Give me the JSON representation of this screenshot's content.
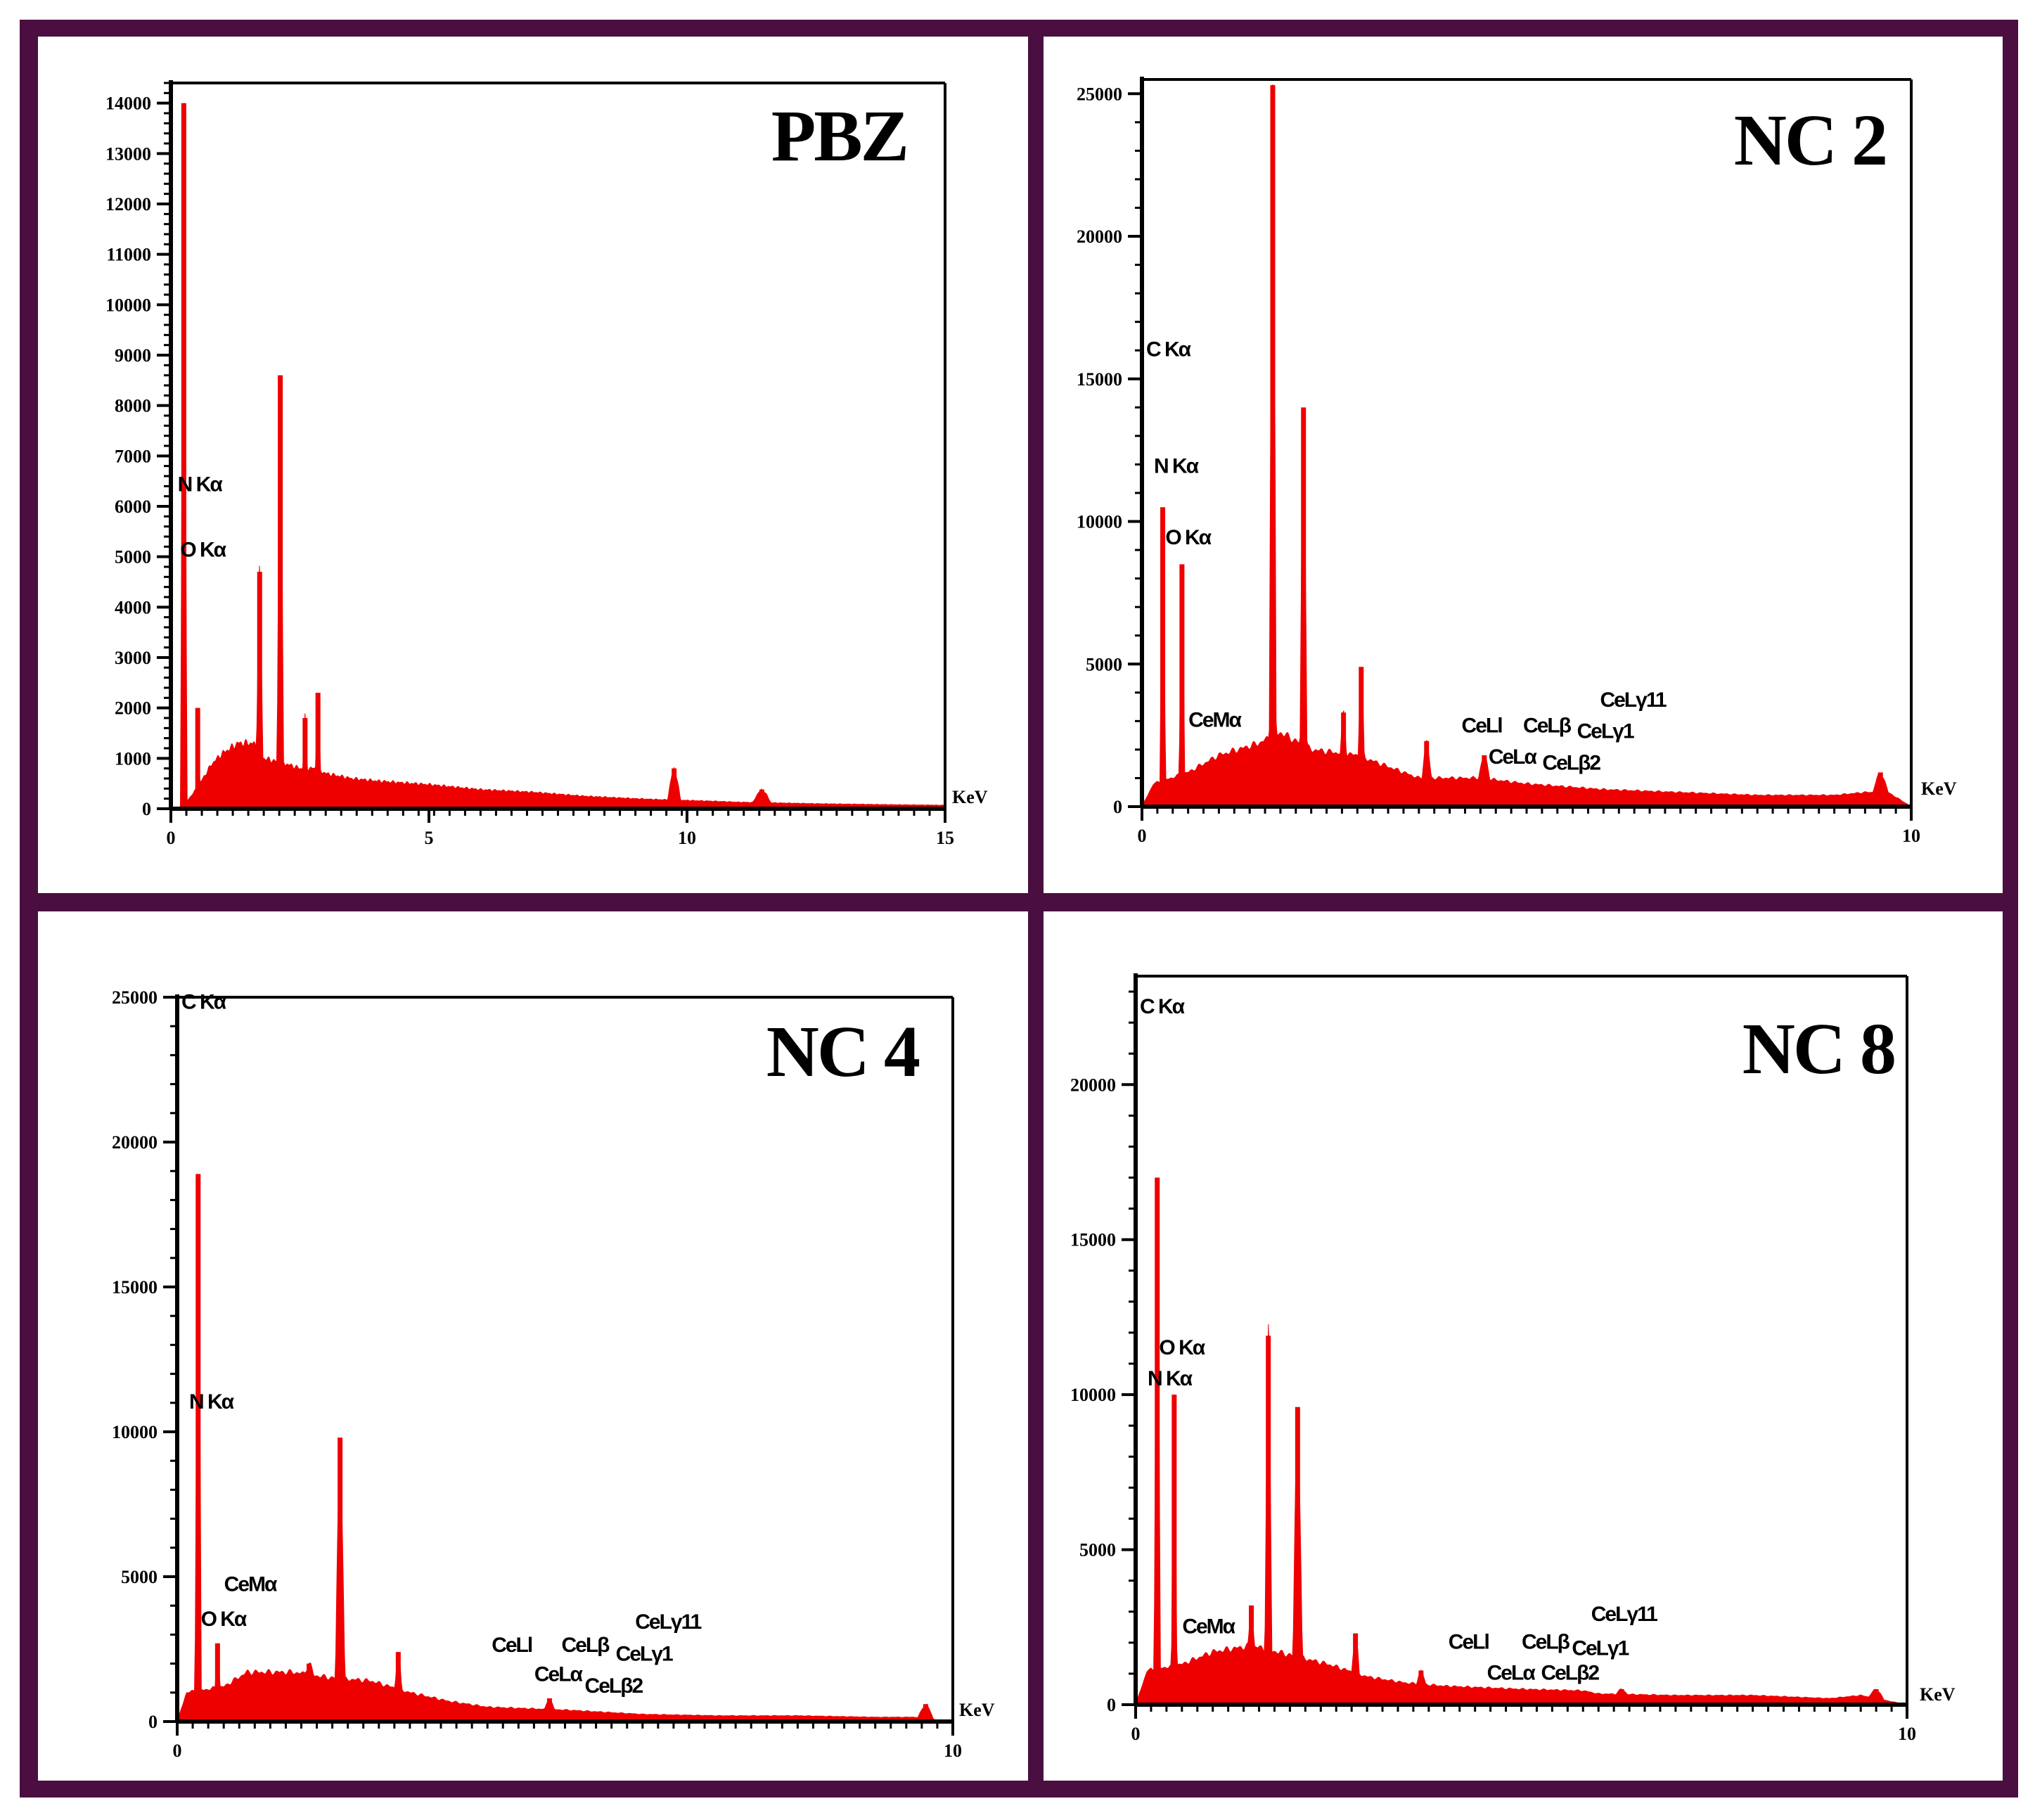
{
  "colors": {
    "frame": "#4a0e40",
    "panel_bg": "#ffffff",
    "spectrum": "#ee0000",
    "axis": "#000000"
  },
  "chart_data": [
    {
      "type": "bar",
      "title": "PBZ",
      "xlabel": "KeV",
      "xlim": [
        0,
        15
      ],
      "ylim": [
        0,
        14400
      ],
      "xticks": [
        0,
        5,
        10,
        15
      ],
      "yticks": [
        0,
        1000,
        2000,
        3000,
        4000,
        5000,
        6000,
        7000,
        8000,
        9000,
        10000,
        11000,
        12000,
        13000,
        14000
      ],
      "annotations": [
        {
          "label": "N Kα",
          "x": 0.05,
          "y": 6300
        },
        {
          "label": "O Kα",
          "x": 0.1,
          "y": 5000
        }
      ],
      "background": [
        [
          0,
          0
        ],
        [
          0.2,
          0
        ],
        [
          0.5,
          400
        ],
        [
          0.8,
          900
        ],
        [
          1.0,
          1100
        ],
        [
          1.3,
          1300
        ],
        [
          1.6,
          1300
        ],
        [
          1.8,
          1000
        ],
        [
          2.2,
          900
        ],
        [
          2.5,
          800
        ],
        [
          2.8,
          800
        ],
        [
          3.0,
          700
        ],
        [
          3.5,
          600
        ],
        [
          4.0,
          550
        ],
        [
          5.0,
          480
        ],
        [
          6.0,
          380
        ],
        [
          7.0,
          330
        ],
        [
          8.0,
          250
        ],
        [
          9.0,
          200
        ],
        [
          9.5,
          180
        ],
        [
          10.5,
          150
        ],
        [
          11.0,
          130
        ],
        [
          11.5,
          120
        ],
        [
          12.5,
          100
        ],
        [
          14.0,
          80
        ],
        [
          15.0,
          70
        ]
      ],
      "peaks": [
        {
          "x": 0.25,
          "y": 14000,
          "w": 0.12
        },
        {
          "x": 0.52,
          "y": 2000,
          "w": 0.07
        },
        {
          "x": 1.72,
          "y": 4700,
          "w": 0.12
        },
        {
          "x": 2.12,
          "y": 8600,
          "w": 0.12
        },
        {
          "x": 2.6,
          "y": 1800,
          "w": 0.08
        },
        {
          "x": 2.85,
          "y": 2300,
          "w": 0.09
        },
        {
          "x": 9.75,
          "y": 800,
          "w": 0.25
        },
        {
          "x": 11.45,
          "y": 380,
          "w": 0.35
        }
      ]
    },
    {
      "type": "bar",
      "title": "NC 2",
      "xlabel": "KeV",
      "xlim": [
        0,
        10
      ],
      "ylim": [
        0,
        25500
      ],
      "xticks": [
        0,
        10
      ],
      "yticks": [
        0,
        5000,
        10000,
        15000,
        20000,
        25000
      ],
      "annotations": [
        {
          "label": "C Kα",
          "x": 0.0,
          "y": 15800
        },
        {
          "label": "N Kα",
          "x": 0.1,
          "y": 11700
        },
        {
          "label": "O Kα",
          "x": 0.25,
          "y": 9200
        },
        {
          "label": "CeMα",
          "x": 0.55,
          "y": 2800
        },
        {
          "label": "CeLl",
          "x": 4.1,
          "y": 2600
        },
        {
          "label": "CeLα",
          "x": 4.45,
          "y": 1500
        },
        {
          "label": "CeLβ",
          "x": 4.9,
          "y": 2600
        },
        {
          "label": "CeLβ2",
          "x": 5.15,
          "y": 1300
        },
        {
          "label": "CeLγ1",
          "x": 5.6,
          "y": 2400
        },
        {
          "label": "CeLγ11",
          "x": 5.9,
          "y": 3500
        }
      ],
      "background": [
        [
          0,
          0
        ],
        [
          0.15,
          800
        ],
        [
          0.6,
          1200
        ],
        [
          1.0,
          1800
        ],
        [
          1.5,
          2200
        ],
        [
          1.8,
          2600
        ],
        [
          2.2,
          2000
        ],
        [
          2.8,
          1800
        ],
        [
          3.2,
          1400
        ],
        [
          3.6,
          1000
        ],
        [
          4.0,
          1000
        ],
        [
          4.4,
          1000
        ],
        [
          5.0,
          800
        ],
        [
          6.0,
          600
        ],
        [
          7.0,
          500
        ],
        [
          8.0,
          400
        ],
        [
          9.0,
          400
        ],
        [
          9.4,
          500
        ],
        [
          9.7,
          500
        ],
        [
          10.0,
          0
        ]
      ],
      "peaks": [
        {
          "x": 0.27,
          "y": 10500,
          "w": 0.07
        },
        {
          "x": 0.52,
          "y": 8500,
          "w": 0.07
        },
        {
          "x": 1.7,
          "y": 25300,
          "w": 0.09
        },
        {
          "x": 2.1,
          "y": 14000,
          "w": 0.09
        },
        {
          "x": 2.62,
          "y": 3300,
          "w": 0.08
        },
        {
          "x": 2.85,
          "y": 4900,
          "w": 0.08
        },
        {
          "x": 3.7,
          "y": 2300,
          "w": 0.12
        },
        {
          "x": 4.45,
          "y": 1800,
          "w": 0.15
        },
        {
          "x": 9.6,
          "y": 1200,
          "w": 0.2
        }
      ]
    },
    {
      "type": "bar",
      "title": "NC 4",
      "xlabel": "KeV",
      "xlim": [
        0,
        10
      ],
      "ylim": [
        0,
        25000
      ],
      "xticks": [
        0,
        10
      ],
      "yticks": [
        0,
        5000,
        10000,
        15000,
        20000,
        25000
      ],
      "annotations": [
        {
          "label": "C Kα",
          "x": 0.0,
          "y": 24600
        },
        {
          "label": "N Kα",
          "x": 0.1,
          "y": 10800
        },
        {
          "label": "CeMα",
          "x": 0.55,
          "y": 4500
        },
        {
          "label": "O Kα",
          "x": 0.25,
          "y": 3300
        },
        {
          "label": "CeLl",
          "x": 4.0,
          "y": 2400
        },
        {
          "label": "CeLα",
          "x": 4.55,
          "y": 1400
        },
        {
          "label": "CeLβ",
          "x": 4.9,
          "y": 2400
        },
        {
          "label": "CeLβ2",
          "x": 5.2,
          "y": 1000
        },
        {
          "label": "CeLγ1",
          "x": 5.6,
          "y": 2100
        },
        {
          "label": "CeLγ11",
          "x": 5.85,
          "y": 3200
        }
      ],
      "background": [
        [
          0,
          0
        ],
        [
          0.12,
          1000
        ],
        [
          0.6,
          1200
        ],
        [
          0.9,
          1700
        ],
        [
          1.5,
          1700
        ],
        [
          2.0,
          1500
        ],
        [
          2.5,
          1400
        ],
        [
          3.0,
          1000
        ],
        [
          3.5,
          700
        ],
        [
          4.0,
          500
        ],
        [
          5.0,
          400
        ],
        [
          6.0,
          250
        ],
        [
          7.0,
          200
        ],
        [
          8.0,
          200
        ],
        [
          9.0,
          150
        ],
        [
          9.5,
          150
        ],
        [
          10.0,
          0
        ]
      ],
      "peaks": [
        {
          "x": 0.27,
          "y": 18900,
          "w": 0.08
        },
        {
          "x": 0.52,
          "y": 2700,
          "w": 0.06
        },
        {
          "x": 1.7,
          "y": 2000,
          "w": 0.12
        },
        {
          "x": 2.1,
          "y": 9800,
          "w": 0.12
        },
        {
          "x": 2.85,
          "y": 2400,
          "w": 0.09
        },
        {
          "x": 4.8,
          "y": 800,
          "w": 0.12
        },
        {
          "x": 9.65,
          "y": 600,
          "w": 0.2
        }
      ]
    },
    {
      "type": "bar",
      "title": "NC 8",
      "xlabel": "KeV",
      "xlim": [
        0,
        10
      ],
      "ylim": [
        0,
        23500
      ],
      "xticks": [
        0,
        10
      ],
      "yticks": [
        0,
        5000,
        10000,
        15000,
        20000
      ],
      "annotations": [
        {
          "label": "C Kα",
          "x": 0.0,
          "y": 22300
        },
        {
          "label": "O Kα",
          "x": 0.25,
          "y": 11300
        },
        {
          "label": "N Kα",
          "x": 0.1,
          "y": 10300
        },
        {
          "label": "CeMα",
          "x": 0.55,
          "y": 2300
        },
        {
          "label": "CeLl",
          "x": 4.0,
          "y": 1800
        },
        {
          "label": "CeLα",
          "x": 4.5,
          "y": 800
        },
        {
          "label": "CeLβ",
          "x": 4.95,
          "y": 1800
        },
        {
          "label": "CeLβ2",
          "x": 5.2,
          "y": 800
        },
        {
          "label": "CeLγ1",
          "x": 5.6,
          "y": 1600
        },
        {
          "label": "CeLγ11",
          "x": 5.85,
          "y": 2700
        }
      ],
      "background": [
        [
          0,
          0
        ],
        [
          0.15,
          1100
        ],
        [
          0.6,
          1300
        ],
        [
          1.0,
          1700
        ],
        [
          1.5,
          1900
        ],
        [
          2.0,
          1600
        ],
        [
          2.5,
          1300
        ],
        [
          3.0,
          900
        ],
        [
          3.5,
          700
        ],
        [
          4.0,
          600
        ],
        [
          5.0,
          500
        ],
        [
          5.8,
          450
        ],
        [
          6.0,
          350
        ],
        [
          7.0,
          300
        ],
        [
          8.0,
          300
        ],
        [
          9.0,
          200
        ],
        [
          9.4,
          300
        ],
        [
          10.0,
          0
        ]
      ],
      "peaks": [
        {
          "x": 0.28,
          "y": 17000,
          "w": 0.08
        },
        {
          "x": 0.5,
          "y": 10000,
          "w": 0.07
        },
        {
          "x": 1.5,
          "y": 3200,
          "w": 0.08
        },
        {
          "x": 1.72,
          "y": 11900,
          "w": 0.09
        },
        {
          "x": 2.1,
          "y": 9600,
          "w": 0.12
        },
        {
          "x": 2.85,
          "y": 2300,
          "w": 0.1
        },
        {
          "x": 3.7,
          "y": 1100,
          "w": 0.12
        },
        {
          "x": 6.3,
          "y": 500,
          "w": 0.15
        },
        {
          "x": 9.6,
          "y": 500,
          "w": 0.2
        }
      ]
    }
  ]
}
